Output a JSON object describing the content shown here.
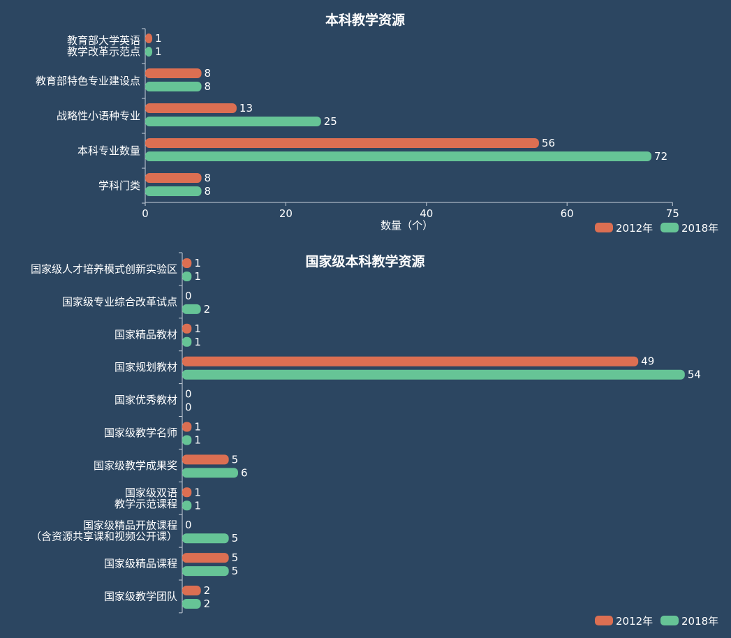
{
  "colors": {
    "background": "#2c4661",
    "series_2012": "#dc6f52",
    "series_2018": "#66c496",
    "axis": "#c8d0da",
    "text": "#ffffff"
  },
  "chart_data": [
    {
      "type": "bar",
      "orientation": "horizontal",
      "title": "本科教学资源",
      "categories": [
        [
          "教育部大学英语",
          "教学改革示范点"
        ],
        [
          "教育部特色专业建设点"
        ],
        [
          "战略性小语种专业"
        ],
        [
          "本科专业数量"
        ],
        [
          "学科门类"
        ]
      ],
      "series": [
        {
          "name": "2012年",
          "color": "#dc6f52",
          "values": [
            1,
            8,
            13,
            56,
            8
          ]
        },
        {
          "name": "2018年",
          "color": "#66c496",
          "values": [
            1,
            8,
            25,
            72,
            8
          ]
        }
      ],
      "xlabel": "数量（个）",
      "xlim": [
        0,
        75
      ],
      "xticks": [
        "0",
        "20",
        "40",
        "60",
        "75"
      ],
      "grid": false,
      "legend": "bottom-right"
    },
    {
      "type": "bar",
      "orientation": "horizontal",
      "title": "国家级本科教学资源",
      "categories": [
        [
          "国家级人才培养模式创新实验区"
        ],
        [
          "国家级专业综合改革试点"
        ],
        [
          "国家精品教材"
        ],
        [
          "国家规划教材"
        ],
        [
          "国家优秀教材"
        ],
        [
          "国家级教学名师"
        ],
        [
          "国家级教学成果奖"
        ],
        [
          "国家级双语",
          "教学示范课程"
        ],
        [
          "国家级精品开放课程",
          "（含资源共享课和视频公开课）"
        ],
        [
          "国家级精品课程"
        ],
        [
          "国家级教学团队"
        ]
      ],
      "series": [
        {
          "name": "2012年",
          "color": "#dc6f52",
          "values": [
            1,
            0,
            1,
            49,
            0,
            1,
            5,
            1,
            0,
            5,
            2
          ]
        },
        {
          "name": "2018年",
          "color": "#66c496",
          "values": [
            1,
            2,
            1,
            54,
            0,
            1,
            6,
            1,
            5,
            5,
            2
          ]
        }
      ],
      "xlim": [
        0,
        54
      ],
      "grid": false,
      "legend": "bottom-right"
    }
  ]
}
